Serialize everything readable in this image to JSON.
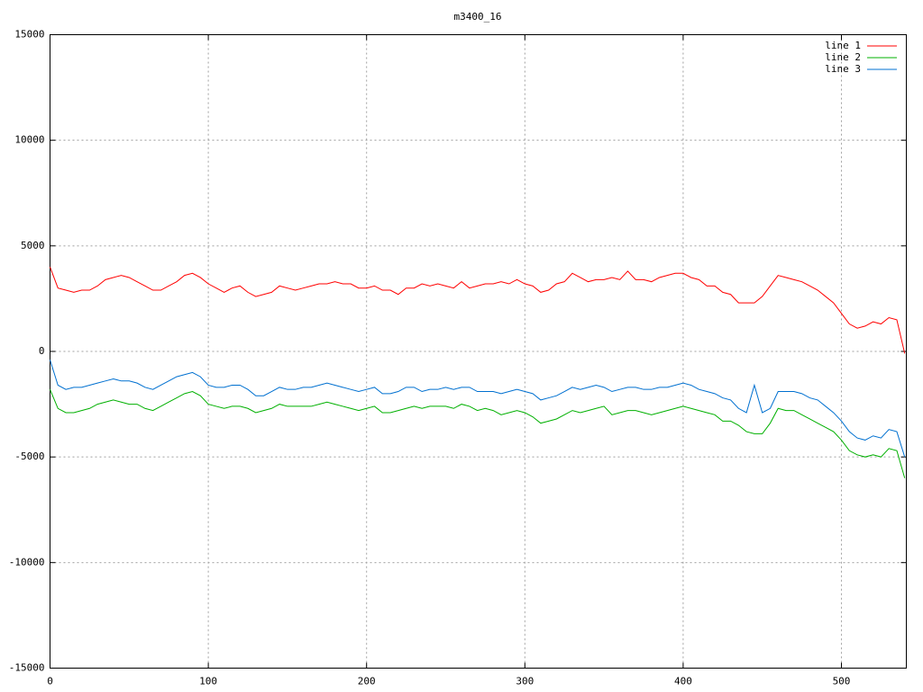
{
  "chart_data": {
    "type": "line",
    "title": "m3400_16",
    "x": [
      0,
      5,
      10,
      15,
      20,
      25,
      30,
      35,
      40,
      45,
      50,
      55,
      60,
      65,
      70,
      75,
      80,
      85,
      90,
      95,
      100,
      105,
      110,
      115,
      120,
      125,
      130,
      135,
      140,
      145,
      150,
      155,
      160,
      165,
      170,
      175,
      180,
      185,
      190,
      195,
      200,
      205,
      210,
      215,
      220,
      225,
      230,
      235,
      240,
      245,
      250,
      255,
      260,
      265,
      270,
      275,
      280,
      285,
      290,
      295,
      300,
      305,
      310,
      315,
      320,
      325,
      330,
      335,
      340,
      345,
      350,
      355,
      360,
      365,
      370,
      375,
      380,
      385,
      390,
      395,
      400,
      405,
      410,
      415,
      420,
      425,
      430,
      435,
      440,
      445,
      450,
      455,
      460,
      465,
      470,
      475,
      480,
      485,
      490,
      495,
      500,
      505,
      510,
      515,
      520,
      525,
      530,
      535,
      540
    ],
    "series": [
      {
        "name": "line 1",
        "color": "#ff0000",
        "values": [
          4000,
          3000,
          2900,
          2800,
          2900,
          2900,
          3100,
          3400,
          3500,
          3600,
          3500,
          3300,
          3100,
          2900,
          2900,
          3100,
          3300,
          3600,
          3700,
          3500,
          3200,
          3000,
          2800,
          3000,
          3100,
          2800,
          2600,
          2700,
          2800,
          3100,
          3000,
          2900,
          3000,
          3100,
          3200,
          3200,
          3300,
          3200,
          3200,
          3000,
          3000,
          3100,
          2900,
          2900,
          2700,
          3000,
          3000,
          3200,
          3100,
          3200,
          3100,
          3000,
          3300,
          3000,
          3100,
          3200,
          3200,
          3300,
          3200,
          3400,
          3200,
          3100,
          2800,
          2900,
          3200,
          3300,
          3700,
          3500,
          3300,
          3400,
          3400,
          3500,
          3400,
          3800,
          3400,
          3400,
          3300,
          3500,
          3600,
          3700,
          3700,
          3500,
          3400,
          3100,
          3100,
          2800,
          2700,
          2300,
          2300,
          2300,
          2600,
          3100,
          3600,
          3500,
          3400,
          3300,
          3100,
          2900,
          2600,
          2300,
          1800,
          1300,
          1100,
          1200,
          1400,
          1300,
          1600,
          1500,
          -100
        ]
      },
      {
        "name": "line 2",
        "color": "#00b000",
        "values": [
          -1800,
          -2700,
          -2900,
          -2900,
          -2800,
          -2700,
          -2500,
          -2400,
          -2300,
          -2400,
          -2500,
          -2500,
          -2700,
          -2800,
          -2600,
          -2400,
          -2200,
          -2000,
          -1900,
          -2100,
          -2500,
          -2600,
          -2700,
          -2600,
          -2600,
          -2700,
          -2900,
          -2800,
          -2700,
          -2500,
          -2600,
          -2600,
          -2600,
          -2600,
          -2500,
          -2400,
          -2500,
          -2600,
          -2700,
          -2800,
          -2700,
          -2600,
          -2900,
          -2900,
          -2800,
          -2700,
          -2600,
          -2700,
          -2600,
          -2600,
          -2600,
          -2700,
          -2500,
          -2600,
          -2800,
          -2700,
          -2800,
          -3000,
          -2900,
          -2800,
          -2900,
          -3100,
          -3400,
          -3300,
          -3200,
          -3000,
          -2800,
          -2900,
          -2800,
          -2700,
          -2600,
          -3000,
          -2900,
          -2800,
          -2800,
          -2900,
          -3000,
          -2900,
          -2800,
          -2700,
          -2600,
          -2700,
          -2800,
          -2900,
          -3000,
          -3300,
          -3300,
          -3500,
          -3800,
          -3900,
          -3900,
          -3400,
          -2700,
          -2800,
          -2800,
          -3000,
          -3200,
          -3400,
          -3600,
          -3800,
          -4200,
          -4700,
          -4900,
          -5000,
          -4900,
          -5000,
          -4600,
          -4700,
          -6000
        ]
      },
      {
        "name": "line 3",
        "color": "#0070d0",
        "values": [
          -400,
          -1600,
          -1800,
          -1700,
          -1700,
          -1600,
          -1500,
          -1400,
          -1300,
          -1400,
          -1400,
          -1500,
          -1700,
          -1800,
          -1600,
          -1400,
          -1200,
          -1100,
          -1000,
          -1200,
          -1600,
          -1700,
          -1700,
          -1600,
          -1600,
          -1800,
          -2100,
          -2100,
          -1900,
          -1700,
          -1800,
          -1800,
          -1700,
          -1700,
          -1600,
          -1500,
          -1600,
          -1700,
          -1800,
          -1900,
          -1800,
          -1700,
          -2000,
          -2000,
          -1900,
          -1700,
          -1700,
          -1900,
          -1800,
          -1800,
          -1700,
          -1800,
          -1700,
          -1700,
          -1900,
          -1900,
          -1900,
          -2000,
          -1900,
          -1800,
          -1900,
          -2000,
          -2300,
          -2200,
          -2100,
          -1900,
          -1700,
          -1800,
          -1700,
          -1600,
          -1700,
          -1900,
          -1800,
          -1700,
          -1700,
          -1800,
          -1800,
          -1700,
          -1700,
          -1600,
          -1500,
          -1600,
          -1800,
          -1900,
          -2000,
          -2200,
          -2300,
          -2700,
          -2900,
          -1600,
          -2900,
          -2700,
          -1900,
          -1900,
          -1900,
          -2000,
          -2200,
          -2300,
          -2600,
          -2900,
          -3300,
          -3800,
          -4100,
          -4200,
          -4000,
          -4100,
          -3700,
          -3800,
          -5000
        ]
      }
    ],
    "xlim": [
      0,
      541
    ],
    "ylim": [
      -15000,
      15000
    ],
    "xticks": [
      0,
      100,
      200,
      300,
      400,
      500
    ],
    "yticks": [
      -15000,
      -10000,
      -5000,
      0,
      5000,
      10000,
      15000
    ],
    "grid": true,
    "legend": "top-right"
  }
}
